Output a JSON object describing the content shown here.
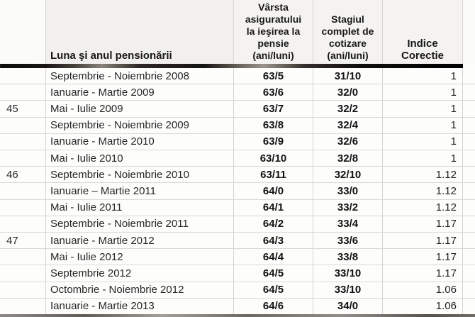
{
  "table": {
    "headers": {
      "rownum": "",
      "month": "Luna şi anul pensionării",
      "age": "Vârsta\nasiguratului\nla ieşirea la\npensie\n(ani/luni)",
      "stage": "Stagiul\ncomplet de\ncotizare\n(ani/luni)",
      "index": "Indice\nCorectie"
    },
    "rows": [
      {
        "left": "",
        "month": "Septembrie - Noiembrie 2008",
        "age": "63/5",
        "stage": "31/10",
        "index": "1"
      },
      {
        "left": "",
        "month": "Ianuarie - Martie 2009",
        "age": "63/6",
        "stage": "32/0",
        "index": "1"
      },
      {
        "left": "45",
        "month": "Mai - Iulie 2009",
        "age": "63/7",
        "stage": "32/2",
        "index": "1"
      },
      {
        "left": "",
        "month": "Septembrie - Noiembrie 2009",
        "age": "63/8",
        "stage": "32/4",
        "index": "1"
      },
      {
        "left": "",
        "month": "Ianuarie - Martie 2010",
        "age": "63/9",
        "stage": "32/6",
        "index": "1"
      },
      {
        "left": "",
        "month": "Mai - Iulie 2010",
        "age": "63/10",
        "stage": "32/8",
        "index": "1"
      },
      {
        "left": "46",
        "month": "Septembrie - Noiembrie 2010",
        "age": "63/11",
        "stage": "32/10",
        "index": "1.12"
      },
      {
        "left": "",
        "month": "Ianuarie – Martie 2011",
        "age": "64/0",
        "stage": "33/0",
        "index": "1.12"
      },
      {
        "left": "",
        "month": "Mai - Iulie 2011",
        "age": "64/1",
        "stage": "33/2",
        "index": "1.12"
      },
      {
        "left": "",
        "month": "Septembrie - Noiembrie 2011",
        "age": "64/2",
        "stage": "33/4",
        "index": "1.17"
      },
      {
        "left": "47",
        "month": "Ianuarie - Martie 2012",
        "age": "64/3",
        "stage": "33/6",
        "index": "1.17"
      },
      {
        "left": "",
        "month": "Mai - Iulie 2012",
        "age": "64/4",
        "stage": "33/8",
        "index": "1.17"
      },
      {
        "left": "",
        "month": "Septembrie 2012",
        "age": "64/5",
        "stage": "33/10",
        "index": "1.17"
      },
      {
        "left": "",
        "month": "Octombrie - Noiembrie 2012",
        "age": "64/5",
        "stage": "33/10",
        "index": "1.06"
      },
      {
        "left": "",
        "month": "Ianuarie - Martie 2013",
        "age": "64/6",
        "stage": "34/0",
        "index": "1.06"
      }
    ]
  },
  "colors": {
    "gridline": "#d6d5d2",
    "header_underline": "#0d0c0b",
    "header_background": "#f4f3f1",
    "row_background": "#fdfdfc",
    "text": "#1f1f1f"
  }
}
